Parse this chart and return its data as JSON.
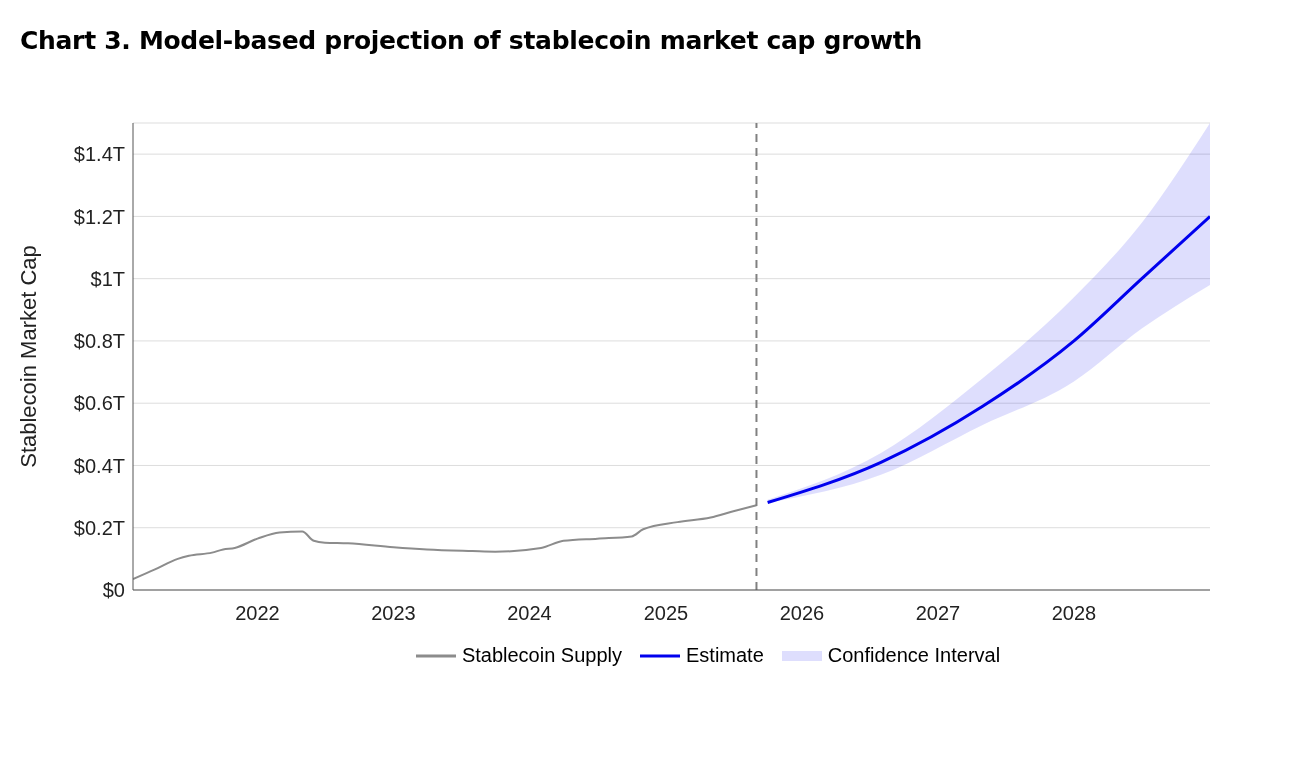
{
  "chart_data": {
    "type": "line",
    "title": "Chart 3. Model-based projection of stablecoin market cap growth",
    "ylabel": "Stablecoin Market Cap",
    "xlim": [
      "2021-02",
      "2028-12-31"
    ],
    "xticks": [
      "2022",
      "2023",
      "2024",
      "2025",
      "2026",
      "2027",
      "2028"
    ],
    "ylim": [
      0,
      1.5
    ],
    "yticks": [
      {
        "value": 0,
        "label": "$0"
      },
      {
        "value": 0.2,
        "label": "$0.2T"
      },
      {
        "value": 0.4,
        "label": "$0.4T"
      },
      {
        "value": 0.6,
        "label": "$0.6T"
      },
      {
        "value": 0.8,
        "label": "$0.8T"
      },
      {
        "value": 1,
        "label": "$1T"
      },
      {
        "value": 1.2,
        "label": "$1.2T"
      },
      {
        "value": 1.4,
        "label": "$1.4T"
      }
    ],
    "grid": "y",
    "legend": "bottom",
    "line_style": "solid",
    "annotations": [
      "Confidence Interval"
    ],
    "ref_lines": [
      {
        "axis": "x",
        "value": "2025-09",
        "color": "#808080",
        "line_style": "dashed"
      }
    ],
    "series": [
      {
        "name": "Stablecoin Supply",
        "color": "#8c8c8c",
        "x": [
          "2021-02",
          "2021-04",
          "2021-06",
          "2021-07",
          "2021-09",
          "2021-10",
          "2021-11",
          "2022-01",
          "2022-03",
          "2022-05",
          "2022-06",
          "2022-07",
          "2022-09",
          "2023-01",
          "2023-04",
          "2023-08",
          "2023-10",
          "2024-02",
          "2024-04",
          "2024-07",
          "2024-10",
          "2024-11",
          "2025-02",
          "2025-05",
          "2025-07",
          "2025-09"
        ],
        "values": [
          0.035,
          0.066,
          0.1,
          0.11,
          0.12,
          0.13,
          0.135,
          0.165,
          0.185,
          0.188,
          0.158,
          0.152,
          0.15,
          0.137,
          0.13,
          0.125,
          0.123,
          0.135,
          0.158,
          0.165,
          0.172,
          0.195,
          0.218,
          0.233,
          0.253,
          0.272
        ]
      },
      {
        "name": "Estimate",
        "color": "#0000ee",
        "x": [
          "2025-10",
          "2026-08",
          "2027-05",
          "2028-01",
          "2028-07",
          "2028-12-31"
        ],
        "values": [
          0.281,
          0.41,
          0.59,
          0.8,
          1.0,
          1.2
        ],
        "lower": [
          0.28,
          0.37,
          0.53,
          0.67,
          0.84,
          0.98
        ],
        "upper": [
          0.29,
          0.44,
          0.68,
          0.94,
          1.18,
          1.5
        ]
      }
    ]
  }
}
